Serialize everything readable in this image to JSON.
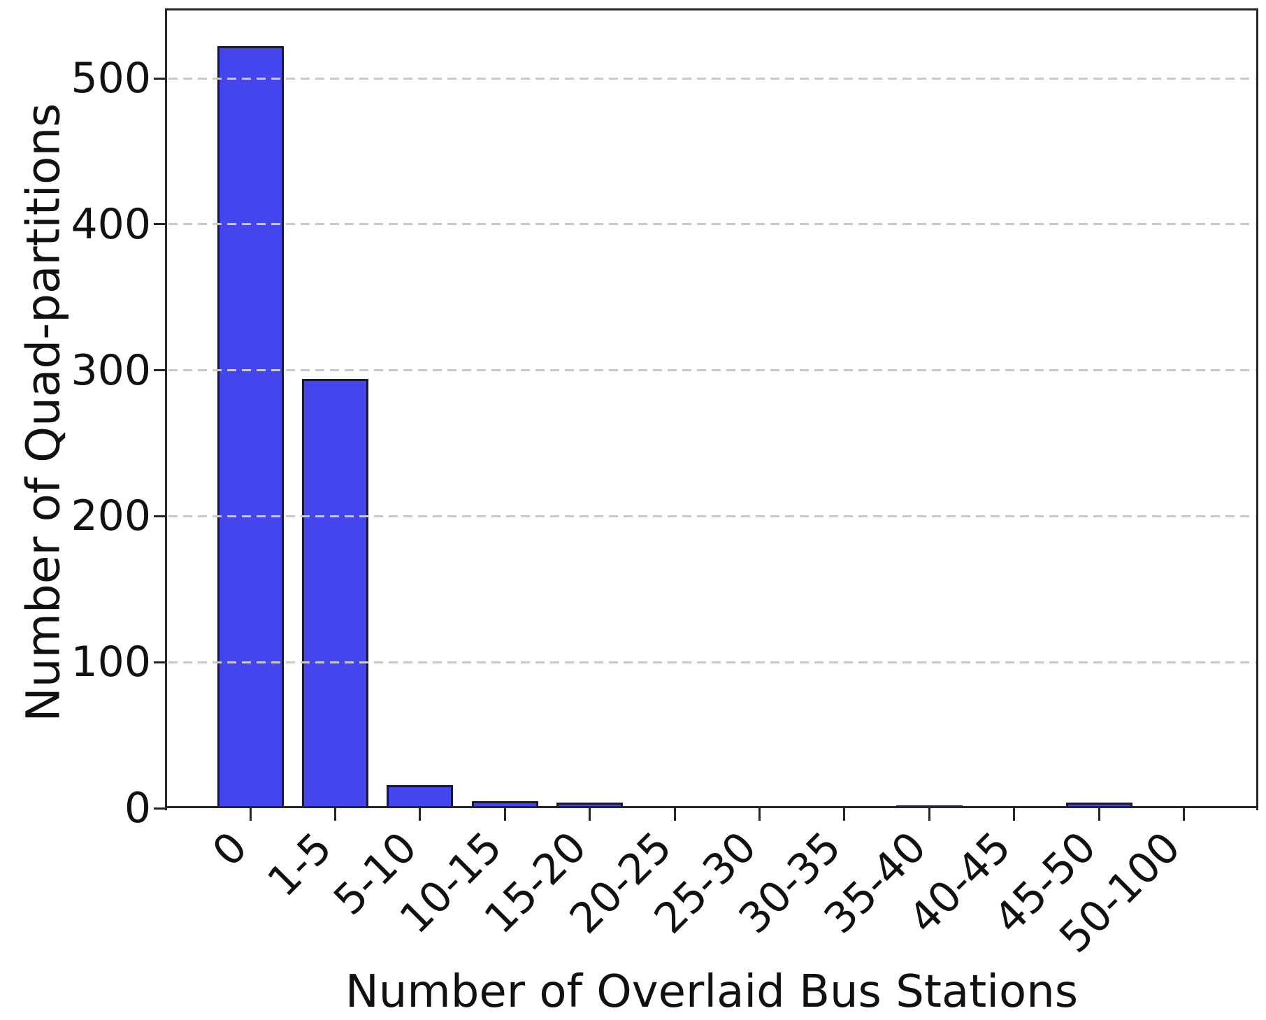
{
  "figure": {
    "bar_fill_color": "#4545ee",
    "bar_edge_color": "#191932",
    "grid_color": "#c9c9c9",
    "spine_color": "#262626",
    "text_color": "#111111",
    "background_color": "#ffffff"
  },
  "chart_data": {
    "type": "bar",
    "title": "",
    "xlabel": "Number of Overlaid Bus Stations",
    "ylabel": "Number of Quad-partitions",
    "categories": [
      "0",
      "1-5",
      "5-10",
      "10-15",
      "15-20",
      "20-25",
      "25-30",
      "30-35",
      "35-40",
      "40-45",
      "45-50",
      "50-100"
    ],
    "values": [
      522,
      294,
      16,
      5,
      4,
      0,
      0,
      0,
      2,
      0,
      4,
      0
    ],
    "yticks": [
      0,
      100,
      200,
      300,
      400,
      500
    ],
    "ylim": [
      0,
      548
    ],
    "grid": "horizontal-dashed-on-top",
    "legend": "none",
    "x_tick_rotation_deg": 45,
    "bar_width_fraction": 0.78
  }
}
